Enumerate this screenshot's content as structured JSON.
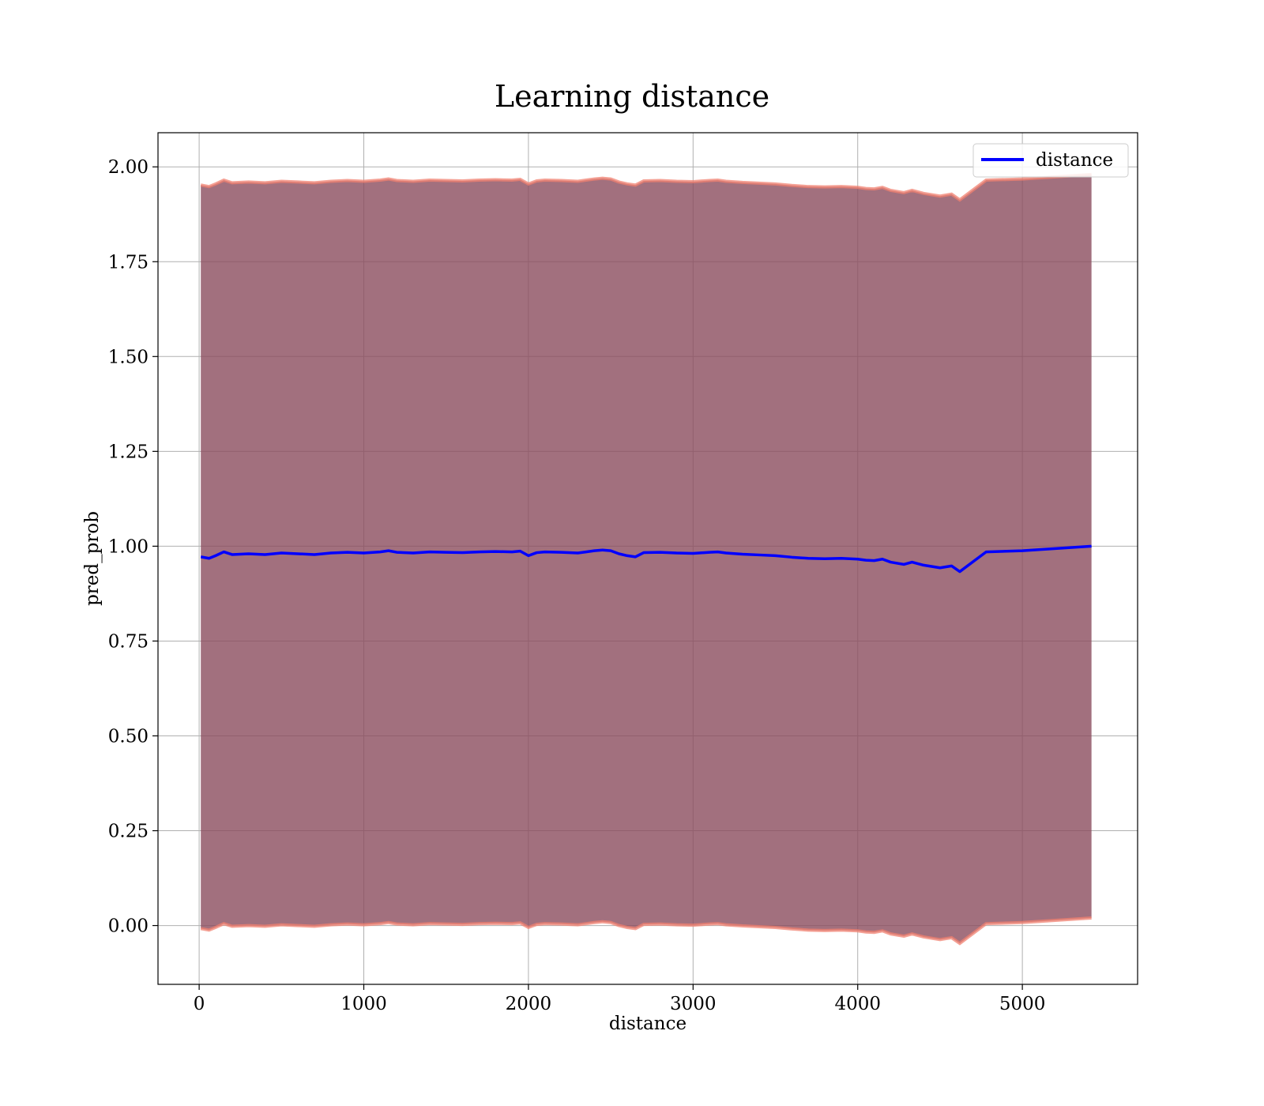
{
  "chart_data": {
    "type": "line",
    "title": "Learning distance",
    "xlabel": "distance",
    "ylabel": "pred_prob",
    "xlim": [
      -250,
      5700
    ],
    "ylim": [
      -0.155,
      2.09
    ],
    "xticks": [
      0,
      1000,
      2000,
      3000,
      4000,
      5000
    ],
    "xtick_labels": [
      "0",
      "1000",
      "2000",
      "3000",
      "4000",
      "5000"
    ],
    "yticks": [
      0.0,
      0.25,
      0.5,
      0.75,
      1.0,
      1.25,
      1.5,
      1.75,
      2.0
    ],
    "ytick_labels": [
      "0.00",
      "0.25",
      "0.50",
      "0.75",
      "1.00",
      "1.25",
      "1.50",
      "1.75",
      "2.00"
    ],
    "grid": true,
    "legend_position": "upper right",
    "colors": {
      "line": "#0000ff",
      "band_fill": "#8b4c5e",
      "band_edge": "#f08070",
      "grid": "#b0b0b0"
    },
    "series": [
      {
        "name": "distance",
        "x": [
          10,
          60,
          100,
          150,
          200,
          300,
          400,
          500,
          600,
          700,
          800,
          900,
          1000,
          1100,
          1150,
          1200,
          1300,
          1400,
          1500,
          1600,
          1700,
          1800,
          1900,
          1950,
          2000,
          2050,
          2100,
          2200,
          2300,
          2350,
          2400,
          2450,
          2500,
          2550,
          2600,
          2650,
          2700,
          2800,
          2900,
          3000,
          3100,
          3150,
          3200,
          3300,
          3400,
          3500,
          3600,
          3700,
          3800,
          3900,
          4000,
          4050,
          4100,
          4150,
          4200,
          4280,
          4330,
          4400,
          4500,
          4570,
          4620,
          4780,
          5000,
          5420
        ],
        "y": [
          0.972,
          0.968,
          0.975,
          0.985,
          0.978,
          0.98,
          0.978,
          0.982,
          0.98,
          0.978,
          0.982,
          0.984,
          0.982,
          0.985,
          0.988,
          0.984,
          0.982,
          0.985,
          0.984,
          0.983,
          0.985,
          0.986,
          0.985,
          0.987,
          0.975,
          0.983,
          0.985,
          0.984,
          0.982,
          0.985,
          0.988,
          0.99,
          0.988,
          0.98,
          0.975,
          0.972,
          0.983,
          0.984,
          0.982,
          0.981,
          0.984,
          0.985,
          0.982,
          0.979,
          0.977,
          0.975,
          0.971,
          0.968,
          0.967,
          0.968,
          0.966,
          0.963,
          0.962,
          0.966,
          0.958,
          0.952,
          0.958,
          0.95,
          0.943,
          0.948,
          0.933,
          0.985,
          0.988,
          1.0
        ],
        "band_halfwidth": 0.98
      }
    ]
  }
}
